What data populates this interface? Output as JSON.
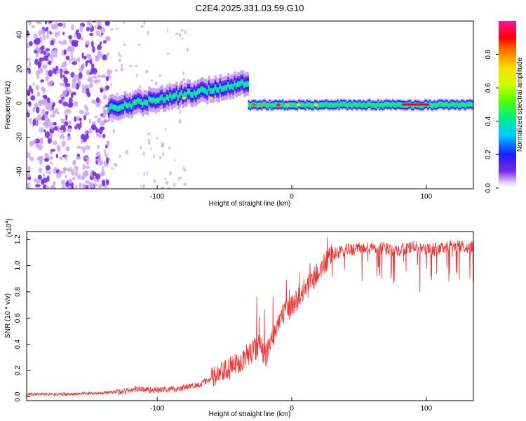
{
  "figure_title": "C2E4.2025.331.03.59.G10",
  "chart_data": [
    {
      "type": "heatmap",
      "title": "",
      "xlabel": "Height of straight line (km)",
      "ylabel": "Frequency (Hz)",
      "xlim": [
        -197,
        135
      ],
      "ylim": [
        -50,
        48
      ],
      "x_ticks": [
        -100,
        0,
        100
      ],
      "y_ticks": [
        -40,
        -20,
        0,
        20,
        40
      ],
      "colorbar": {
        "label": "Normalized spectral amplitude",
        "range": [
          0,
          1
        ],
        "ticks": [
          "0.0",
          "0.2",
          "0.4",
          "0.6",
          "0.8"
        ],
        "tick_values": [
          0,
          0.2,
          0.4,
          0.6,
          0.8
        ],
        "colormap": "rainbow (purple to magenta)"
      },
      "description_of_signal": [
        {
          "x_range": [
            -197,
            -136
          ],
          "freq_range": [
            -50,
            48
          ],
          "amplitude": 0.05,
          "kind": "noise"
        },
        {
          "x_range": [
            -136,
            -32
          ],
          "freq_center_start": -3,
          "freq_center_end": 12,
          "amplitude": 0.4,
          "kind": "rising trace"
        },
        {
          "x_range": [
            -32,
            135
          ],
          "freq_center": -1,
          "amplitude": 0.55,
          "kind": "steady carrier"
        }
      ]
    },
    {
      "type": "line",
      "title": "",
      "xlabel": "Height of straight line (km)",
      "ylabel": "SNR (10 * v/v)",
      "y_multiplier": "(x10",
      "y_multiplier_exp": "4",
      "y_multiplier_close": ")",
      "xlim": [
        -197,
        135
      ],
      "ylim": [
        -0.03,
        1.26
      ],
      "x_ticks": [
        -100,
        0,
        100
      ],
      "y_ticks": [
        "0.0",
        "0.2",
        "0.4",
        "0.6",
        "0.8",
        "1.0",
        "1.2"
      ],
      "y_tick_values": [
        0,
        0.2,
        0.4,
        0.6,
        0.8,
        1.0,
        1.2
      ],
      "color": "#ee3333",
      "series": [
        {
          "name": "SNR",
          "x": [
            -197,
            -180,
            -160,
            -140,
            -125,
            -115,
            -100,
            -85,
            -70,
            -55,
            -45,
            -35,
            -28,
            -23,
            -20,
            -15,
            -10,
            -5,
            0,
            5,
            10,
            15,
            20,
            25,
            30,
            40,
            50,
            60,
            70,
            80,
            90,
            100,
            110,
            120,
            135
          ],
          "y": [
            0.02,
            0.02,
            0.02,
            0.03,
            0.04,
            0.06,
            0.05,
            0.06,
            0.09,
            0.16,
            0.22,
            0.3,
            0.36,
            0.4,
            0.3,
            0.42,
            0.58,
            0.64,
            0.7,
            0.75,
            0.82,
            0.88,
            0.95,
            1.02,
            1.08,
            1.12,
            1.13,
            1.13,
            1.13,
            1.12,
            1.14,
            1.12,
            1.13,
            1.15,
            1.14
          ]
        }
      ]
    }
  ]
}
